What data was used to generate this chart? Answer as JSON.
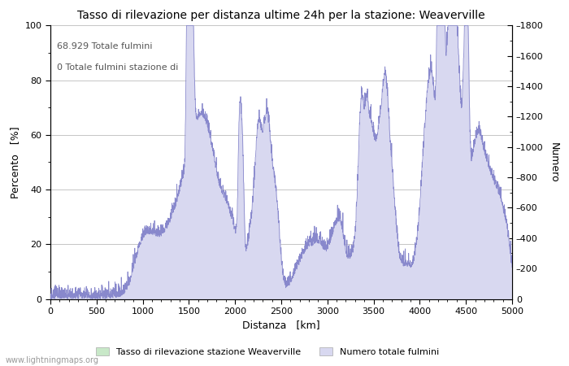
{
  "title": "Tasso di rilevazione per distanza ultime 24h per la stazione: Weaverville",
  "xlabel": "Distanza   [km]",
  "ylabel_left": "Percento   [%]",
  "ylabel_right": "Numero",
  "annotation_line1": "68.929 Totale fulmini",
  "annotation_line2": "0 Totale fulmini stazione di",
  "xlim": [
    0,
    5000
  ],
  "ylim_left": [
    0,
    100
  ],
  "ylim_right": [
    0,
    1800
  ],
  "xticks": [
    0,
    500,
    1000,
    1500,
    2000,
    2500,
    3000,
    3500,
    4000,
    4500,
    5000
  ],
  "yticks_left": [
    0,
    20,
    40,
    60,
    80,
    100
  ],
  "yticks_right": [
    0,
    200,
    400,
    600,
    800,
    1000,
    1200,
    1400,
    1600,
    1800
  ],
  "legend_label_green": "Tasso di rilevazione stazione Weaverville",
  "legend_label_blue": "Numero totale fulmini",
  "fill_color_blue": "#d8d8f0",
  "fill_color_green": "#c8e8c8",
  "line_color_blue": "#8888cc",
  "line_color_green": "#88bb88",
  "background_color": "#ffffff",
  "grid_color": "#bbbbbb",
  "watermark": "www.lightningmaps.org"
}
